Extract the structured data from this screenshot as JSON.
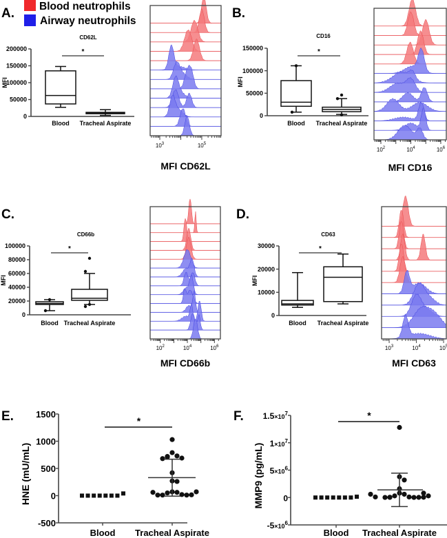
{
  "legend": {
    "items": [
      {
        "label": "Blood neutrophils",
        "color": "#f0292c"
      },
      {
        "label": "Airway neutrophils",
        "color": "#1f1fe8"
      }
    ]
  },
  "chart_data": [
    {
      "panel": "A.",
      "type": "box",
      "title": "CD62L",
      "ylabel": "MFI",
      "categories": [
        "Blood",
        "Tracheal Aspirate"
      ],
      "ylim": [
        0,
        200000
      ],
      "yticks": [
        "0",
        "50000",
        "100000",
        "150000",
        "200000"
      ],
      "yticks_values": [
        0,
        50000,
        100000,
        150000,
        200000
      ],
      "significance": "*",
      "boxes": [
        {
          "min": 27000,
          "q1": 37000,
          "median": 62000,
          "q3": 135000,
          "max": 148000,
          "outliers": []
        },
        {
          "min": 3000,
          "q1": 8000,
          "median": 10000,
          "q3": 12000,
          "max": 20000,
          "outliers": []
        }
      ]
    },
    {
      "panel": "A.",
      "type": "histogram",
      "xlabel": "MFI CD62L",
      "xlim_log10": [
        2.54,
        5.92
      ],
      "ticks": [
        {
          "base": "10",
          "exp": "3",
          "v": 3
        },
        {
          "base": "10",
          "exp": "5",
          "v": 5
        }
      ],
      "rows": [
        {
          "group": "blood",
          "peaks": [
            [
              5.1,
              0.11,
              1.5
            ]
          ]
        },
        {
          "group": "blood",
          "peaks": [
            [
              5.0,
              0.12,
              1.3
            ]
          ]
        },
        {
          "group": "blood",
          "peaks": [
            [
              4.65,
              0.16,
              1.2
            ]
          ]
        },
        {
          "group": "blood",
          "peaks": [
            [
              4.35,
              0.17,
              1.2
            ]
          ]
        },
        {
          "group": "blood",
          "peaks": [
            [
              4.75,
              0.14,
              1.2
            ]
          ]
        },
        {
          "group": "airway",
          "peaks": [
            [
              3.55,
              0.12,
              1.3
            ],
            [
              3.9,
              0.3,
              0.2
            ]
          ]
        },
        {
          "group": "airway",
          "peaks": [
            [
              3.8,
              0.15,
              0.9
            ],
            [
              4.1,
              0.2,
              0.3
            ]
          ]
        },
        {
          "group": "airway",
          "peaks": [
            [
              4.3,
              0.13,
              0.9
            ],
            [
              4.5,
              0.12,
              0.9
            ]
          ]
        },
        {
          "group": "airway",
          "peaks": [
            [
              3.75,
              0.14,
              1.1
            ],
            [
              4.0,
              0.2,
              0.3
            ]
          ]
        },
        {
          "group": "airway",
          "peaks": [
            [
              3.75,
              0.15,
              1.0
            ],
            [
              4.4,
              0.12,
              0.8
            ]
          ]
        },
        {
          "group": "airway",
          "peaks": [
            [
              3.6,
              0.13,
              1.1
            ],
            [
              3.9,
              0.2,
              0.4
            ]
          ]
        },
        {
          "group": "airway",
          "peaks": [
            [
              4.1,
              0.13,
              1.0
            ]
          ]
        },
        {
          "group": "airway",
          "peaks": [
            [
              4.3,
              0.11,
              1.1
            ]
          ]
        }
      ]
    },
    {
      "panel": "B.",
      "type": "box",
      "title": "CD16",
      "ylabel": "MFI",
      "categories": [
        "Blood",
        "Tracheal Aspirate"
      ],
      "ylim": [
        0,
        150000
      ],
      "yticks": [
        "0",
        "50000",
        "100000",
        "150000"
      ],
      "yticks_values": [
        0,
        50000,
        100000,
        150000
      ],
      "significance": "*",
      "boxes": [
        {
          "min": 8000,
          "q1": 21000,
          "median": 30000,
          "q3": 78000,
          "max": 111000,
          "outliers": [
            111000,
            8000
          ]
        },
        {
          "min": 3000,
          "q1": 9000,
          "median": 14000,
          "q3": 19000,
          "max": 38000,
          "outliers": [
            46000,
            38000,
            2000
          ]
        }
      ]
    },
    {
      "panel": "B.",
      "type": "histogram",
      "xlabel": "MFI CD16",
      "xlim_log10": [
        1.54,
        6.37
      ],
      "ticks": [
        {
          "base": "10",
          "exp": "2",
          "v": 2
        },
        {
          "base": "10",
          "exp": "4",
          "v": 4
        },
        {
          "base": "10",
          "exp": "6",
          "v": 6
        }
      ],
      "rows": [
        {
          "group": "blood",
          "peaks": [
            [
              4.1,
              0.22,
              1.5
            ]
          ]
        },
        {
          "group": "blood",
          "peaks": [
            [
              4.0,
              0.2,
              1.3
            ]
          ]
        },
        {
          "group": "blood",
          "peaks": [
            [
              5.0,
              0.22,
              1.4
            ]
          ]
        },
        {
          "group": "blood",
          "peaks": [
            [
              4.65,
              0.2,
              1.3
            ]
          ]
        },
        {
          "group": "blood",
          "peaks": [
            [
              3.95,
              0.22,
              1.2
            ]
          ]
        },
        {
          "group": "airway",
          "peaks": [
            [
              4.7,
              0.2,
              1.2
            ],
            [
              4.1,
              0.5,
              0.4
            ]
          ]
        },
        {
          "group": "airway",
          "peaks": [
            [
              3.4,
              0.6,
              0.6
            ],
            [
              4.1,
              0.2,
              0.4
            ]
          ]
        },
        {
          "group": "airway",
          "peaks": [
            [
              3.1,
              0.5,
              0.5
            ],
            [
              4.0,
              0.3,
              0.7
            ]
          ]
        },
        {
          "group": "airway",
          "peaks": [
            [
              3.8,
              0.35,
              0.5
            ],
            [
              4.9,
              0.2,
              0.8
            ]
          ]
        },
        {
          "group": "airway",
          "peaks": [
            [
              2.8,
              0.4,
              0.7
            ],
            [
              4.6,
              0.5,
              0.5
            ]
          ]
        },
        {
          "group": "airway",
          "peaks": [
            [
              4.7,
              0.18,
              1.0
            ],
            [
              3.5,
              0.6,
              0.2
            ]
          ]
        },
        {
          "group": "airway",
          "peaks": [
            [
              4.85,
              0.15,
              1.2
            ],
            [
              4.0,
              0.4,
              0.4
            ]
          ]
        },
        {
          "group": "airway",
          "peaks": [
            [
              3.6,
              0.45,
              0.8
            ],
            [
              4.6,
              0.2,
              0.6
            ]
          ]
        }
      ]
    },
    {
      "panel": "C.",
      "type": "box",
      "title": "CD66b",
      "ylabel": "MFI",
      "categories": [
        "Blood",
        "Tracheal Aspirate"
      ],
      "ylim": [
        0,
        100000
      ],
      "yticks": [
        "0",
        "20000",
        "40000",
        "60000",
        "80000",
        "100000"
      ],
      "yticks_values": [
        0,
        20000,
        40000,
        60000,
        80000,
        100000
      ],
      "significance": "*",
      "boxes": [
        {
          "min": 6000,
          "q1": 15000,
          "median": 16500,
          "q3": 19000,
          "max": 22000,
          "outliers": [
            22000,
            6000
          ]
        },
        {
          "min": 15000,
          "q1": 21000,
          "median": 24000,
          "q3": 37000,
          "max": 60000,
          "outliers": [
            82000,
            63000,
            15000,
            12000
          ]
        }
      ]
    },
    {
      "panel": "C.",
      "type": "histogram",
      "xlabel": "MFI CD66b",
      "xlim_log10": [
        1.25,
        6.44
      ],
      "ticks": [
        {
          "base": "10",
          "exp": "2",
          "v": 2
        },
        {
          "base": "10",
          "exp": "4",
          "v": 4
        },
        {
          "base": "10",
          "exp": "6",
          "v": 6
        }
      ],
      "rows": [
        {
          "group": "blood",
          "peaks": [
            [
              4.2,
              0.1,
              1.5
            ]
          ]
        },
        {
          "group": "blood",
          "peaks": [
            [
              4.6,
              0.05,
              1.3
            ]
          ]
        },
        {
          "group": "blood",
          "peaks": [
            [
              3.85,
              0.1,
              1.4
            ]
          ]
        },
        {
          "group": "blood",
          "peaks": [
            [
              4.1,
              0.15,
              1.3
            ]
          ]
        },
        {
          "group": "blood",
          "peaks": [
            [
              4.1,
              0.17,
              1.3
            ]
          ]
        },
        {
          "group": "airway",
          "peaks": [
            [
              4.0,
              0.25,
              1.1
            ]
          ]
        },
        {
          "group": "airway",
          "peaks": [
            [
              4.35,
              0.15,
              1.0
            ],
            [
              3.9,
              0.25,
              0.5
            ]
          ]
        },
        {
          "group": "airway",
          "peaks": [
            [
              3.9,
              0.15,
              0.8
            ],
            [
              4.4,
              0.15,
              0.8
            ]
          ]
        },
        {
          "group": "airway",
          "peaks": [
            [
              4.3,
              0.14,
              1.1
            ],
            [
              3.9,
              0.2,
              0.4
            ]
          ]
        },
        {
          "group": "airway",
          "peaks": [
            [
              3.8,
              0.1,
              0.8
            ],
            [
              4.2,
              0.2,
              0.8
            ]
          ]
        },
        {
          "group": "airway",
          "peaks": [
            [
              4.5,
              0.1,
              1.2
            ],
            [
              4.1,
              0.2,
              0.4
            ]
          ]
        },
        {
          "group": "airway",
          "peaks": [
            [
              4.3,
              0.1,
              0.9
            ],
            [
              4.9,
              0.12,
              1.2
            ],
            [
              3.9,
              0.3,
              0.3
            ]
          ]
        },
        {
          "group": "airway",
          "peaks": [
            [
              4.4,
              0.15,
              1.0
            ],
            [
              4.85,
              0.1,
              0.9
            ]
          ]
        },
        {
          "group": "airway",
          "peaks": [
            [
              4.6,
              0.15,
              1.2
            ]
          ]
        }
      ]
    },
    {
      "panel": "D.",
      "type": "box",
      "title": "CD63",
      "ylabel": "MFI",
      "categories": [
        "Blood",
        "Tracheal Aspirate"
      ],
      "ylim": [
        0,
        30000
      ],
      "yticks": [
        "0",
        "10000",
        "20000",
        "30000"
      ],
      "yticks_values": [
        0,
        10000,
        20000,
        30000
      ],
      "significance": "*",
      "boxes": [
        {
          "min": 3500,
          "q1": 4500,
          "median": 5000,
          "q3": 6500,
          "max": 18500,
          "outliers": []
        },
        {
          "min": 5000,
          "q1": 6000,
          "median": 16500,
          "q3": 21000,
          "max": 26500,
          "outliers": []
        }
      ]
    },
    {
      "panel": "D.",
      "type": "histogram",
      "xlabel": "MFI CD63",
      "xlim_log10": [
        2.72,
        5.1
      ],
      "ticks": [
        {
          "base": "10",
          "exp": "3",
          "v": 3
        },
        {
          "base": "10",
          "exp": "4",
          "v": 4
        },
        {
          "base": "10",
          "exp": "5",
          "v": 5
        }
      ],
      "rows": [
        {
          "group": "blood",
          "peaks": [
            [
              3.6,
              0.1,
              1.4
            ]
          ]
        },
        {
          "group": "blood",
          "peaks": [
            [
              3.45,
              0.08,
              1.3
            ]
          ]
        },
        {
          "group": "blood",
          "peaks": [
            [
              3.45,
              0.08,
              1.3
            ]
          ]
        },
        {
          "group": "blood",
          "peaks": [
            [
              3.5,
              0.08,
              1.2
            ],
            [
              4.25,
              0.08,
              1.2
            ]
          ]
        },
        {
          "group": "blood",
          "peaks": [
            [
              3.45,
              0.08,
              1.3
            ]
          ]
        },
        {
          "group": "blood",
          "peaks": [
            [
              3.5,
              0.1,
              1.2
            ]
          ]
        },
        {
          "group": "airway",
          "peaks": [
            [
              3.65,
              0.1,
              1.0
            ],
            [
              4.1,
              0.25,
              0.5
            ]
          ]
        },
        {
          "group": "airway",
          "peaks": [
            [
              4.1,
              0.2,
              1.0
            ],
            [
              4.5,
              0.2,
              0.3
            ]
          ]
        },
        {
          "group": "airway",
          "peaks": [
            [
              4.0,
              0.18,
              1.0
            ],
            [
              4.4,
              0.2,
              0.3
            ]
          ]
        },
        {
          "group": "airway",
          "peaks": [
            [
              4.2,
              0.3,
              0.9
            ],
            [
              4.7,
              0.25,
              0.5
            ]
          ]
        },
        {
          "group": "airway",
          "peaks": [
            [
              3.6,
              0.1,
              1.0
            ],
            [
              4.1,
              0.4,
              0.25
            ]
          ]
        }
      ]
    },
    {
      "panel": "E.",
      "type": "scatter",
      "ylabel": "HNE (mU/mL)",
      "categories": [
        "Blood",
        "Tracheal Aspirate"
      ],
      "ylim": [
        -500,
        1500
      ],
      "yticks": [
        "-500",
        "0",
        "500",
        "1000",
        "1500"
      ],
      "yticks_values": [
        -500,
        0,
        500,
        1000,
        1500
      ],
      "significance": "*",
      "groups": [
        {
          "marker": "square",
          "values": [
            0,
            0,
            0,
            0,
            0,
            0,
            0,
            40
          ]
        },
        {
          "marker": "circle",
          "values": [
            1030,
            790,
            730,
            720,
            710,
            690,
            680,
            420,
            270,
            260,
            70,
            60,
            50,
            20,
            10,
            10,
            10,
            15,
            60,
            70
          ],
          "mean": 330,
          "sd": 340
        }
      ]
    },
    {
      "panel": "F.",
      "type": "scatter",
      "ylabel": "MMP9 (pg/mL)",
      "categories": [
        "Blood",
        "Tracheal Aspirate"
      ],
      "ylim": [
        -5000000,
        15000000
      ],
      "yticks": [
        {
          "mant": "-5",
          "exp": "6",
          "v": -5000000
        },
        {
          "mant": "0",
          "exp": "",
          "v": 0
        },
        {
          "mant": "5",
          "exp": "6",
          "v": 5000000
        },
        {
          "mant": "1",
          "exp": "7",
          "v": 10000000
        },
        {
          "mant": "1.5",
          "exp": "7",
          "v": 15000000
        }
      ],
      "significance": "*",
      "groups": [
        {
          "marker": "square",
          "values": [
            0,
            0,
            0,
            0,
            0,
            0,
            0,
            150000
          ]
        },
        {
          "marker": "circle",
          "values": [
            12800000,
            3800000,
            3200000,
            1600000,
            800000,
            600000,
            300000,
            100000,
            50000,
            30000,
            20000,
            20000,
            30000,
            50000,
            100000,
            300000,
            600000,
            800000
          ],
          "mean": 1400000,
          "sd": 3050000
        }
      ]
    }
  ]
}
